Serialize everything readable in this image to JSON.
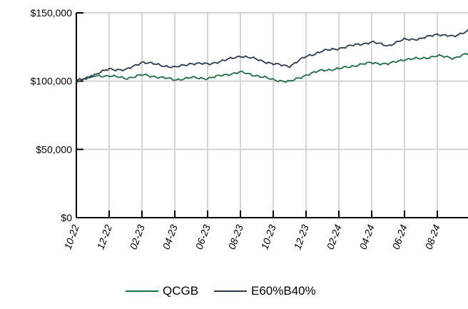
{
  "chart_data": {
    "type": "line",
    "title": "",
    "xlabel": "",
    "ylabel": "",
    "ylim": [
      0,
      150000
    ],
    "y_ticks": [
      {
        "value": 0,
        "label": "$0"
      },
      {
        "value": 50000,
        "label": "$50,000"
      },
      {
        "value": 100000,
        "label": "$100,000"
      },
      {
        "value": 150000,
        "label": "$150,000"
      }
    ],
    "x_ticks": [
      "10-22",
      "12-22",
      "02-23",
      "04-23",
      "06-23",
      "08-23",
      "10-23",
      "12-23",
      "02-24",
      "04-24",
      "06-24",
      "08-24"
    ],
    "x_range": [
      "10-22",
      "10-24"
    ],
    "grid": true,
    "legend_position": "bottom",
    "x": [
      "10-22",
      "11-22",
      "12-22",
      "01-23",
      "02-23",
      "03-23",
      "04-23",
      "05-23",
      "06-23",
      "07-23",
      "08-23",
      "09-23",
      "10-23",
      "11-23",
      "12-23",
      "01-24",
      "02-24",
      "03-24",
      "04-24",
      "05-24",
      "06-24",
      "07-24",
      "08-24",
      "09-24",
      "10-24"
    ],
    "series": [
      {
        "name": "QCGB",
        "color": "#1f6e46",
        "values": [
          100000,
          103500,
          104000,
          102000,
          104500,
          103000,
          101000,
          102500,
          102000,
          104500,
          106500,
          104000,
          101000,
          99500,
          104500,
          108000,
          109000,
          111500,
          113500,
          112500,
          116000,
          116500,
          118500,
          117000,
          120500
        ]
      },
      {
        "name": "E60%B40%",
        "color": "#2b3a4e",
        "values": [
          100000,
          104000,
          109000,
          108000,
          114000,
          112000,
          110000,
          113000,
          112500,
          115000,
          118500,
          116000,
          112500,
          111000,
          118000,
          122000,
          124000,
          126500,
          128500,
          126000,
          130500,
          131000,
          134500,
          132500,
          138000
        ]
      }
    ]
  }
}
